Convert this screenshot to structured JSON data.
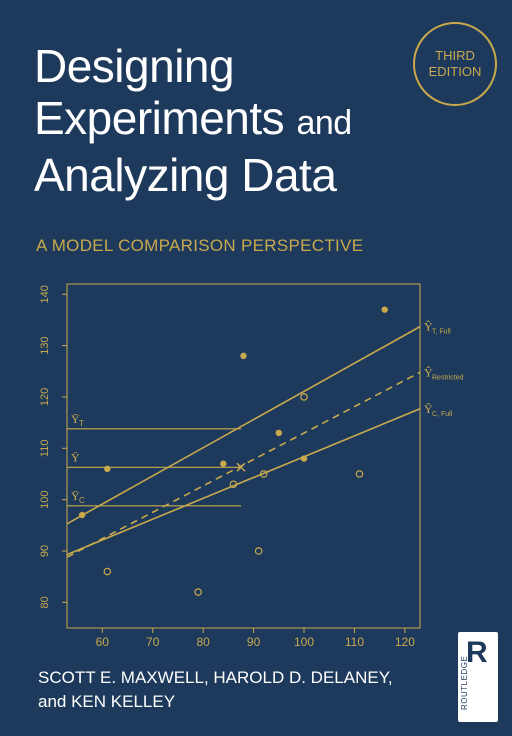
{
  "cover": {
    "title_line1": "Designing",
    "title_line2a": "Experiments",
    "title_line2b": "and",
    "title_line3": "Analyzing Data",
    "edition_line1": "THIRD",
    "edition_line2": "EDITION",
    "subtitle": "A MODEL COMPARISON PERSPECTIVE",
    "authors_line1": "SCOTT E. MAXWELL, HAROLD D. DELANEY,",
    "authors_line2": "and KEN KELLEY",
    "publisher_mark": "R",
    "publisher_name": "ROUTLEDGE",
    "colors": {
      "background": "#1d3a5c",
      "accent": "#c9a94d",
      "text": "#ffffff"
    }
  },
  "chart_data": {
    "type": "scatter",
    "x_ticks": [
      "60",
      "70",
      "80",
      "90",
      "100",
      "110",
      "120"
    ],
    "y_ticks": [
      "80",
      "90",
      "100",
      "110",
      "120",
      "130",
      "140"
    ],
    "xlim": [
      53,
      123
    ],
    "ylim": [
      75,
      142
    ],
    "filled_points": [
      [
        56,
        97
      ],
      [
        61,
        106
      ],
      [
        84,
        107
      ],
      [
        88,
        128
      ],
      [
        95,
        113
      ],
      [
        100,
        108
      ],
      [
        116,
        137
      ]
    ],
    "open_points": [
      [
        61,
        86
      ],
      [
        79,
        82
      ],
      [
        86,
        103
      ],
      [
        91,
        90
      ],
      [
        92,
        105
      ],
      [
        100,
        120
      ],
      [
        111,
        105
      ]
    ],
    "x_marks": [
      [
        87.5,
        106.3
      ]
    ],
    "lines": [
      {
        "label_main": "Ŷ",
        "label_sub": "T, Full",
        "x": [
          53,
          123
        ],
        "y": [
          95.3,
          133.7
        ],
        "dashed": false
      },
      {
        "label_main": "Ŷ",
        "label_sub": "Restricted",
        "x": [
          53,
          123
        ],
        "y": [
          88.8,
          124.8
        ],
        "dashed": true
      },
      {
        "label_main": "Ŷ",
        "label_sub": "C, Full",
        "x": [
          53,
          123
        ],
        "y": [
          89.3,
          117.7
        ],
        "dashed": false
      }
    ],
    "horizontal_lines": [
      {
        "label": "Ȳ",
        "sub": "T",
        "y": 113.8,
        "x_end": 87.5
      },
      {
        "label": "Ȳ",
        "sub": "",
        "y": 106.3,
        "x_end": 87.5
      },
      {
        "label": "Ȳ",
        "sub": "C",
        "y": 98.8,
        "x_end": 87.5
      }
    ]
  }
}
